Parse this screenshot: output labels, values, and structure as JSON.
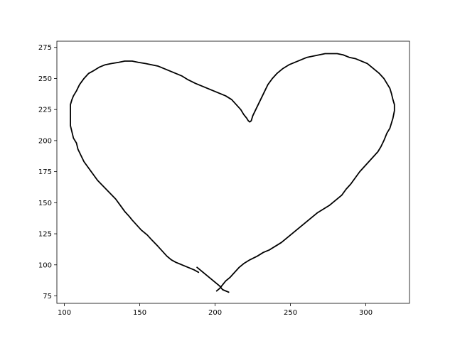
{
  "chart_data": {
    "type": "line",
    "title": "",
    "xlabel": "",
    "ylabel": "",
    "xlim": [
      95,
      329
    ],
    "ylim": [
      69,
      280
    ],
    "x_ticks": [
      100,
      150,
      200,
      250,
      300
    ],
    "y_ticks": [
      75,
      100,
      125,
      150,
      175,
      200,
      225,
      250,
      275
    ],
    "grid": false,
    "legend": "none",
    "series": [
      {
        "color": "#000000",
        "points": [
          [
            189,
            94
          ],
          [
            186,
            96
          ],
          [
            182,
            98
          ],
          [
            178,
            100
          ],
          [
            174,
            102
          ],
          [
            171,
            104
          ],
          [
            168,
            107
          ],
          [
            165,
            111
          ],
          [
            162,
            115
          ],
          [
            158,
            120
          ],
          [
            155,
            124
          ],
          [
            151,
            128
          ],
          [
            148,
            132
          ],
          [
            145,
            136
          ],
          [
            143,
            139
          ],
          [
            140,
            143
          ],
          [
            137,
            148
          ],
          [
            134,
            153
          ],
          [
            130,
            158
          ],
          [
            126,
            163
          ],
          [
            122,
            168
          ],
          [
            119,
            173
          ],
          [
            116,
            178
          ],
          [
            113,
            183
          ],
          [
            111,
            188
          ],
          [
            109,
            193
          ],
          [
            108,
            198
          ],
          [
            106,
            202
          ],
          [
            105,
            207
          ],
          [
            104,
            212
          ],
          [
            104,
            217
          ],
          [
            104,
            222
          ],
          [
            104,
            229
          ],
          [
            105,
            233
          ],
          [
            106,
            236
          ],
          [
            108,
            240
          ],
          [
            110,
            245
          ],
          [
            113,
            250
          ],
          [
            116,
            254
          ],
          [
            119,
            256
          ],
          [
            123,
            259
          ],
          [
            127,
            261
          ],
          [
            131,
            262
          ],
          [
            136,
            263
          ],
          [
            140,
            264
          ],
          [
            145,
            264
          ],
          [
            149,
            263
          ],
          [
            154,
            262
          ],
          [
            158,
            261
          ],
          [
            162,
            260
          ],
          [
            166,
            258
          ],
          [
            170,
            256
          ],
          [
            174,
            254
          ],
          [
            178,
            252
          ],
          [
            182,
            249
          ],
          [
            187,
            246
          ],
          [
            191,
            244
          ],
          [
            195,
            242
          ],
          [
            199,
            240
          ],
          [
            203,
            238
          ],
          [
            207,
            236
          ],
          [
            211,
            233
          ],
          [
            214,
            229
          ],
          [
            217,
            225
          ],
          [
            219,
            221
          ],
          [
            221,
            218
          ],
          [
            222,
            216
          ],
          [
            223,
            215
          ],
          [
            224,
            216
          ],
          [
            225,
            220
          ],
          [
            227,
            225
          ],
          [
            229,
            230
          ],
          [
            231,
            235
          ],
          [
            233,
            240
          ],
          [
            235,
            245
          ],
          [
            238,
            250
          ],
          [
            241,
            254
          ],
          [
            245,
            258
          ],
          [
            249,
            261
          ],
          [
            253,
            263
          ],
          [
            257,
            265
          ],
          [
            261,
            267
          ],
          [
            265,
            268
          ],
          [
            269,
            269
          ],
          [
            273,
            270
          ],
          [
            277,
            270
          ],
          [
            281,
            270
          ],
          [
            285,
            269
          ],
          [
            289,
            267
          ],
          [
            293,
            266
          ],
          [
            297,
            264
          ],
          [
            301,
            262
          ],
          [
            305,
            258
          ],
          [
            309,
            254
          ],
          [
            312,
            250
          ],
          [
            314,
            246
          ],
          [
            316,
            242
          ],
          [
            317,
            238
          ],
          [
            318,
            233
          ],
          [
            319,
            229
          ],
          [
            319,
            224
          ],
          [
            318,
            218
          ],
          [
            317,
            214
          ],
          [
            316,
            210
          ],
          [
            314,
            206
          ],
          [
            312,
            200
          ],
          [
            310,
            195
          ],
          [
            308,
            191
          ],
          [
            305,
            187
          ],
          [
            302,
            183
          ],
          [
            299,
            179
          ],
          [
            296,
            175
          ],
          [
            293,
            170
          ],
          [
            290,
            165
          ],
          [
            287,
            161
          ],
          [
            284,
            156
          ],
          [
            280,
            152
          ],
          [
            276,
            148
          ],
          [
            272,
            145
          ],
          [
            268,
            142
          ],
          [
            264,
            138
          ],
          [
            260,
            134
          ],
          [
            256,
            130
          ],
          [
            252,
            126
          ],
          [
            248,
            122
          ],
          [
            244,
            118
          ],
          [
            240,
            115
          ],
          [
            236,
            112
          ],
          [
            232,
            110
          ],
          [
            228,
            107
          ],
          [
            223,
            104
          ],
          [
            219,
            101
          ],
          [
            216,
            98
          ],
          [
            213,
            94
          ],
          [
            210,
            90
          ],
          [
            207,
            87
          ],
          [
            205,
            84
          ],
          [
            203,
            81
          ],
          [
            201,
            79
          ]
        ]
      },
      {
        "color": "#000000",
        "points": [
          [
            188,
            98
          ],
          [
            191,
            95
          ],
          [
            194,
            92
          ],
          [
            197,
            89
          ],
          [
            200,
            86
          ],
          [
            203,
            83
          ],
          [
            205,
            80
          ],
          [
            207,
            79
          ],
          [
            209,
            78
          ]
        ]
      }
    ]
  }
}
